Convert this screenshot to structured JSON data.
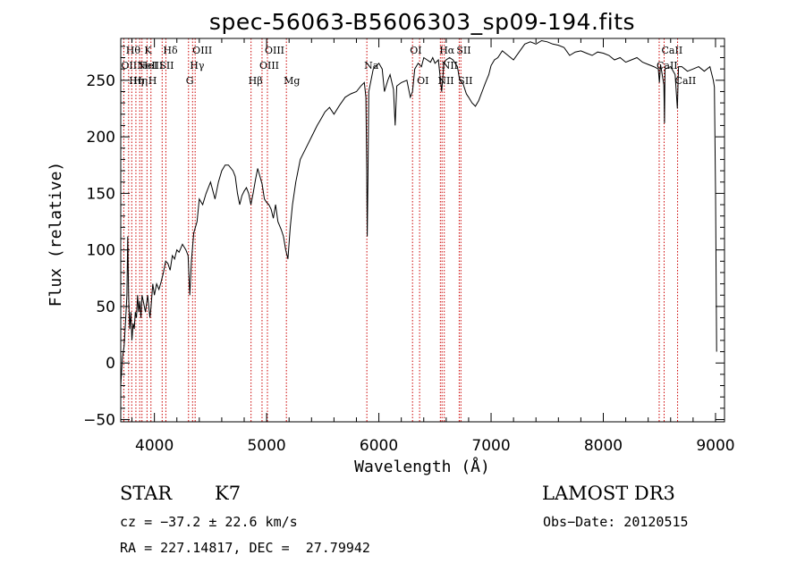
{
  "chart_data": {
    "type": "line",
    "title": "spec-56063-B5606303_sp09-194.fits",
    "xlabel": "Wavelength (Å)",
    "ylabel": "Flux (relative)",
    "xlim": [
      3700,
      9080
    ],
    "ylim": [
      -52,
      287
    ],
    "x_ticks": [
      4000,
      5000,
      6000,
      7000,
      8000,
      9000
    ],
    "y_ticks": [
      -50,
      0,
      50,
      100,
      150,
      200,
      250
    ],
    "series": [
      {
        "name": "flux",
        "points": [
          [
            3700,
            -20
          ],
          [
            3715,
            5
          ],
          [
            3730,
            15
          ],
          [
            3745,
            40
          ],
          [
            3755,
            60
          ],
          [
            3762,
            112
          ],
          [
            3770,
            60
          ],
          [
            3780,
            30
          ],
          [
            3790,
            45
          ],
          [
            3800,
            20
          ],
          [
            3810,
            35
          ],
          [
            3820,
            30
          ],
          [
            3830,
            45
          ],
          [
            3840,
            40
          ],
          [
            3850,
            60
          ],
          [
            3860,
            45
          ],
          [
            3870,
            55
          ],
          [
            3880,
            40
          ],
          [
            3890,
            60
          ],
          [
            3900,
            55
          ],
          [
            3920,
            45
          ],
          [
            3940,
            60
          ],
          [
            3960,
            40
          ],
          [
            3970,
            50
          ],
          [
            3985,
            70
          ],
          [
            4000,
            60
          ],
          [
            4020,
            70
          ],
          [
            4040,
            65
          ],
          [
            4060,
            72
          ],
          [
            4080,
            80
          ],
          [
            4100,
            90
          ],
          [
            4120,
            88
          ],
          [
            4140,
            82
          ],
          [
            4160,
            95
          ],
          [
            4180,
            92
          ],
          [
            4200,
            100
          ],
          [
            4220,
            98
          ],
          [
            4250,
            105
          ],
          [
            4280,
            100
          ],
          [
            4300,
            95
          ],
          [
            4315,
            60
          ],
          [
            4330,
            90
          ],
          [
            4350,
            115
          ],
          [
            4380,
            125
          ],
          [
            4400,
            145
          ],
          [
            4430,
            140
          ],
          [
            4460,
            150
          ],
          [
            4500,
            160
          ],
          [
            4540,
            145
          ],
          [
            4570,
            160
          ],
          [
            4600,
            170
          ],
          [
            4630,
            175
          ],
          [
            4660,
            175
          ],
          [
            4700,
            170
          ],
          [
            4720,
            165
          ],
          [
            4740,
            150
          ],
          [
            4760,
            140
          ],
          [
            4780,
            148
          ],
          [
            4800,
            152
          ],
          [
            4820,
            155
          ],
          [
            4840,
            150
          ],
          [
            4860,
            140
          ],
          [
            4880,
            150
          ],
          [
            4900,
            162
          ],
          [
            4920,
            172
          ],
          [
            4940,
            165
          ],
          [
            4960,
            158
          ],
          [
            4980,
            145
          ],
          [
            5000,
            142
          ],
          [
            5020,
            140
          ],
          [
            5040,
            136
          ],
          [
            5060,
            128
          ],
          [
            5080,
            140
          ],
          [
            5100,
            125
          ],
          [
            5130,
            118
          ],
          [
            5150,
            112
          ],
          [
            5170,
            100
          ],
          [
            5190,
            92
          ],
          [
            5210,
            120
          ],
          [
            5230,
            140
          ],
          [
            5260,
            160
          ],
          [
            5300,
            180
          ],
          [
            5350,
            190
          ],
          [
            5400,
            200
          ],
          [
            5450,
            210
          ],
          [
            5480,
            215
          ],
          [
            5520,
            222
          ],
          [
            5560,
            226
          ],
          [
            5600,
            220
          ],
          [
            5650,
            228
          ],
          [
            5700,
            235
          ],
          [
            5750,
            238
          ],
          [
            5800,
            240
          ],
          [
            5840,
            245
          ],
          [
            5870,
            248
          ],
          [
            5885,
            235
          ],
          [
            5892,
            170
          ],
          [
            5897,
            112
          ],
          [
            5903,
            165
          ],
          [
            5910,
            240
          ],
          [
            5950,
            260
          ],
          [
            6000,
            265
          ],
          [
            6030,
            260
          ],
          [
            6050,
            240
          ],
          [
            6080,
            250
          ],
          [
            6100,
            255
          ],
          [
            6130,
            242
          ],
          [
            6145,
            210
          ],
          [
            6160,
            245
          ],
          [
            6200,
            248
          ],
          [
            6250,
            250
          ],
          [
            6280,
            235
          ],
          [
            6300,
            240
          ],
          [
            6320,
            260
          ],
          [
            6350,
            265
          ],
          [
            6380,
            262
          ],
          [
            6400,
            270
          ],
          [
            6430,
            268
          ],
          [
            6460,
            266
          ],
          [
            6480,
            270
          ],
          [
            6500,
            265
          ],
          [
            6530,
            268
          ],
          [
            6560,
            240
          ],
          [
            6580,
            265
          ],
          [
            6600,
            268
          ],
          [
            6630,
            270
          ],
          [
            6660,
            268
          ],
          [
            6700,
            262
          ],
          [
            6720,
            250
          ],
          [
            6750,
            247
          ],
          [
            6780,
            238
          ],
          [
            6800,
            235
          ],
          [
            6830,
            230
          ],
          [
            6860,
            227
          ],
          [
            6890,
            232
          ],
          [
            6920,
            240
          ],
          [
            6950,
            248
          ],
          [
            6980,
            255
          ],
          [
            7000,
            263
          ],
          [
            7030,
            268
          ],
          [
            7060,
            270
          ],
          [
            7100,
            276
          ],
          [
            7150,
            272
          ],
          [
            7200,
            268
          ],
          [
            7250,
            275
          ],
          [
            7300,
            282
          ],
          [
            7350,
            284
          ],
          [
            7400,
            282
          ],
          [
            7450,
            285
          ],
          [
            7500,
            284
          ],
          [
            7550,
            282
          ],
          [
            7600,
            281
          ],
          [
            7650,
            279
          ],
          [
            7700,
            272
          ],
          [
            7750,
            275
          ],
          [
            7800,
            276
          ],
          [
            7850,
            274
          ],
          [
            7900,
            272
          ],
          [
            7950,
            275
          ],
          [
            8000,
            274
          ],
          [
            8050,
            272
          ],
          [
            8100,
            268
          ],
          [
            8150,
            270
          ],
          [
            8200,
            266
          ],
          [
            8250,
            268
          ],
          [
            8300,
            270
          ],
          [
            8350,
            266
          ],
          [
            8400,
            264
          ],
          [
            8450,
            262
          ],
          [
            8490,
            260
          ],
          [
            8500,
            248
          ],
          [
            8510,
            264
          ],
          [
            8540,
            246
          ],
          [
            8545,
            212
          ],
          [
            8550,
            260
          ],
          [
            8600,
            262
          ],
          [
            8640,
            255
          ],
          [
            8660,
            225
          ],
          [
            8670,
            262
          ],
          [
            8700,
            262
          ],
          [
            8750,
            258
          ],
          [
            8800,
            260
          ],
          [
            8850,
            262
          ],
          [
            8900,
            258
          ],
          [
            8950,
            262
          ],
          [
            8980,
            250
          ],
          [
            8990,
            244
          ],
          [
            9000,
            150
          ],
          [
            9010,
            10
          ]
        ]
      }
    ],
    "lines": [
      {
        "w": 3727,
        "label": "OII",
        "row": 1
      },
      {
        "w": 3770,
        "label": "Hθ",
        "row": 0
      },
      {
        "w": 3798,
        "label": "Hη",
        "row": 2
      },
      {
        "w": 3835,
        "label": "Hη",
        "row": 2
      },
      {
        "w": 3869,
        "label": "NeIII",
        "row": 1
      },
      {
        "w": 3889,
        "label": "HeI",
        "row": 1
      },
      {
        "w": 3934,
        "label": "K",
        "row": 0
      },
      {
        "w": 3969,
        "label": "H",
        "row": 2
      },
      {
        "w": 4069,
        "label": "SII",
        "row": 1
      },
      {
        "w": 4102,
        "label": "Hδ",
        "row": 0
      },
      {
        "w": 4304,
        "label": "G",
        "row": 2
      },
      {
        "w": 4340,
        "label": "Hγ",
        "row": 1
      },
      {
        "w": 4363,
        "label": "OIII",
        "row": 0
      },
      {
        "w": 4861,
        "label": "Hβ",
        "row": 2
      },
      {
        "w": 4959,
        "label": "OIII",
        "row": 1
      },
      {
        "w": 5007,
        "label": "OIII",
        "row": 0
      },
      {
        "w": 5176,
        "label": "Mg",
        "row": 2
      },
      {
        "w": 5893,
        "label": "Na",
        "row": 1
      },
      {
        "w": 6300,
        "label": "OI",
        "row": 0
      },
      {
        "w": 6363,
        "label": "OI",
        "row": 2
      },
      {
        "w": 6548,
        "label": "NII",
        "row": 2
      },
      {
        "w": 6563,
        "label": "Hα",
        "row": 0
      },
      {
        "w": 6583,
        "label": "NII",
        "row": 1
      },
      {
        "w": 6716,
        "label": "SII",
        "row": 0
      },
      {
        "w": 6731,
        "label": "SII",
        "row": 2
      },
      {
        "w": 8498,
        "label": "CaII",
        "row": 1
      },
      {
        "w": 8542,
        "label": "CaII",
        "row": 0
      },
      {
        "w": 8662,
        "label": "CaII",
        "row": 2
      }
    ],
    "line_color": "#cc0000",
    "curve_color": "#000000"
  },
  "info": {
    "class": "STAR",
    "subclass": "K7",
    "survey": "LAMOST DR3",
    "cz": "cz = −37.2 ± 22.6 km/s",
    "obs_date": "Obs−Date: 20120515",
    "coords": "RA = 227.14817, DEC =  27.79942"
  }
}
